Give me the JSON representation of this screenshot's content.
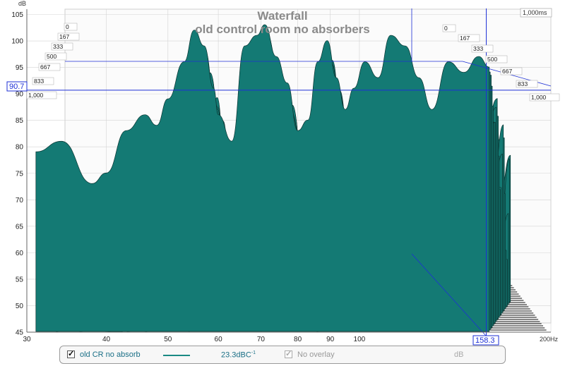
{
  "title": "Waterfall",
  "subtitle": "old control room no absorbers",
  "y_unit": "dB",
  "x_unit_label": "200Hz",
  "cursor": {
    "y_value": "90.7",
    "x_value": "158.3"
  },
  "time_corner_label": "1,000ms",
  "time_ticks_left": [
    "0",
    "167",
    "333",
    "500",
    "667",
    "833",
    "1,000"
  ],
  "time_ticks_right": [
    "0",
    "167",
    "333",
    "500",
    "667",
    "833",
    "1,000"
  ],
  "legend": {
    "series_label": "old CR no absorb",
    "smoothing_value": "23.3dBC",
    "smoothing_sup": "-1",
    "overlay_label": "No overlay",
    "overlay_unit": "dB",
    "series_color": "#1a8a84"
  },
  "colors": {
    "fill": "#147a74",
    "line": "#0b3431",
    "cursor": "#1d2fd6",
    "grid": "#d3d3d3"
  },
  "chart_data": {
    "type": "area",
    "x_scale": "log",
    "xlim": [
      30,
      200
    ],
    "ylim": [
      45,
      106
    ],
    "x_ticks": [
      30,
      40,
      50,
      60,
      70,
      80,
      90,
      100
    ],
    "y_ticks": [
      45,
      50,
      55,
      60,
      65,
      70,
      75,
      80,
      85,
      90,
      95,
      100,
      105
    ],
    "z_ticks_ms": [
      0,
      167,
      333,
      500,
      667,
      833,
      1000
    ],
    "front_slice": {
      "x": [
        31,
        34,
        38,
        40,
        43,
        46,
        48,
        50,
        53,
        55,
        57,
        59,
        60,
        63,
        66,
        69,
        71,
        74,
        77,
        80,
        83,
        86,
        89,
        92,
        95,
        98,
        102,
        107,
        112,
        118,
        124,
        130,
        138,
        146,
        154,
        160
      ],
      "y": [
        78,
        80,
        72,
        74,
        82,
        85,
        83,
        88,
        95,
        101,
        98,
        90,
        85,
        80,
        98,
        100,
        102,
        96,
        91,
        82,
        84,
        95,
        99,
        92,
        86,
        90,
        95,
        92,
        100,
        98,
        92,
        86,
        95,
        93,
        96,
        94
      ]
    }
  }
}
